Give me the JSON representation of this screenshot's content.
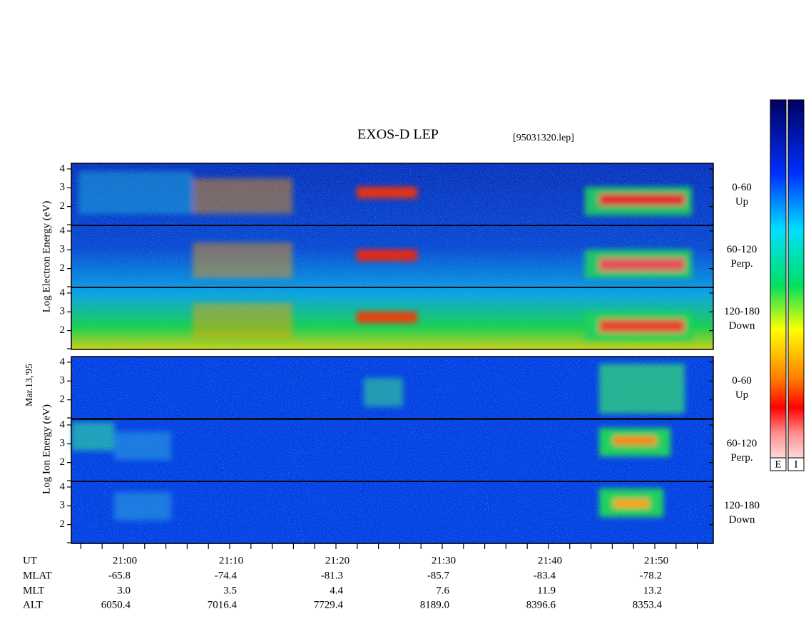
{
  "title": "EXOS-D LEP",
  "file": "[95031320.lep]",
  "date": "Mar.13,'95",
  "electron_axis_label": "Log Electron Energy (eV)",
  "ion_axis_label": "Log Ion Energy (eV)",
  "ylim": [
    1,
    4.3
  ],
  "yticks": [
    2,
    3,
    4
  ],
  "panels": [
    {
      "angle": "0-60",
      "direction": "Up"
    },
    {
      "angle": "60-120",
      "direction": "Perp."
    },
    {
      "angle": "120-180",
      "direction": "Down"
    },
    {
      "angle": "0-60",
      "direction": "Up"
    },
    {
      "angle": "60-120",
      "direction": "Perp."
    },
    {
      "angle": "120-180",
      "direction": "Down"
    }
  ],
  "ephemeris": [
    {
      "name": "UT",
      "values": [
        "21:00",
        "21:10",
        "21:20",
        "21:30",
        "21:40",
        "21:50"
      ]
    },
    {
      "name": "MLAT",
      "values": [
        "-65.8",
        "-74.4",
        "-81.3",
        "-85.7",
        "-83.4",
        "-78.2"
      ]
    },
    {
      "name": "MLT",
      "values": [
        "3.0",
        "3.5",
        "4.4",
        "7.6",
        "11.9",
        "13.2"
      ]
    },
    {
      "name": "ALT",
      "values": [
        "6050.4",
        "7016.4",
        "7729.4",
        "8189.0",
        "8396.6",
        "8353.4"
      ]
    }
  ],
  "colorbar_labels": [
    "E",
    "I"
  ]
}
